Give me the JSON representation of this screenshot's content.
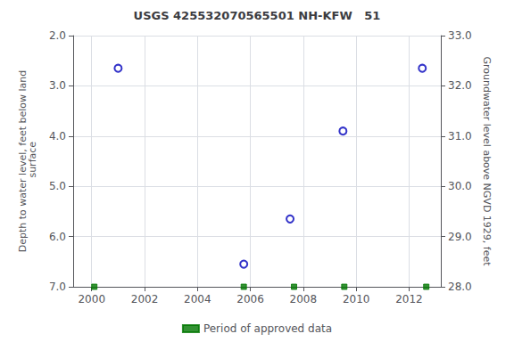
{
  "chart_data": {
    "type": "scatter",
    "title": "USGS 425532070565501 NH-KFW   51",
    "ylabel": "Depth to water level, feet below land\n surface",
    "y2label": "Groundwater level above NGVD 1929, feet",
    "xlim": [
      1999.3,
      2013.2
    ],
    "xticks": [
      2000,
      2002,
      2004,
      2006,
      2008,
      2010,
      2012
    ],
    "ylim": [
      7.0,
      2.0
    ],
    "yticks": [
      {
        "value": 2.0,
        "label": "2.0"
      },
      {
        "value": 3.0,
        "label": "3.0"
      },
      {
        "value": 4.0,
        "label": "4.0"
      },
      {
        "value": 5.0,
        "label": "5.0"
      },
      {
        "value": 6.0,
        "label": "6.0"
      },
      {
        "value": 7.0,
        "label": "7.0"
      }
    ],
    "y2lim": [
      28.0,
      33.0
    ],
    "y2ticks": [
      {
        "value": 28.0,
        "label": "28.0"
      },
      {
        "value": 29.0,
        "label": "29.0"
      },
      {
        "value": 30.0,
        "label": "30.0"
      },
      {
        "value": 31.0,
        "label": "31.0"
      },
      {
        "value": 32.0,
        "label": "32.0"
      },
      {
        "value": 33.0,
        "label": "33.0"
      }
    ],
    "grid": true,
    "legend": "bottom",
    "series": [
      {
        "color": "#0000bb",
        "marker": "circle",
        "x": [
          2001.0,
          2005.75,
          2007.5,
          2009.5,
          2012.5
        ],
        "values": [
          2.65,
          6.55,
          5.65,
          3.9,
          2.65
        ]
      },
      {
        "name": "Period of approved data",
        "color": "#007700",
        "marker": "square",
        "x": [
          2000.1,
          2005.75,
          2007.65,
          2009.55,
          2012.65
        ],
        "values": [
          7.0,
          7.0,
          7.0,
          7.0,
          7.0
        ]
      }
    ]
  }
}
